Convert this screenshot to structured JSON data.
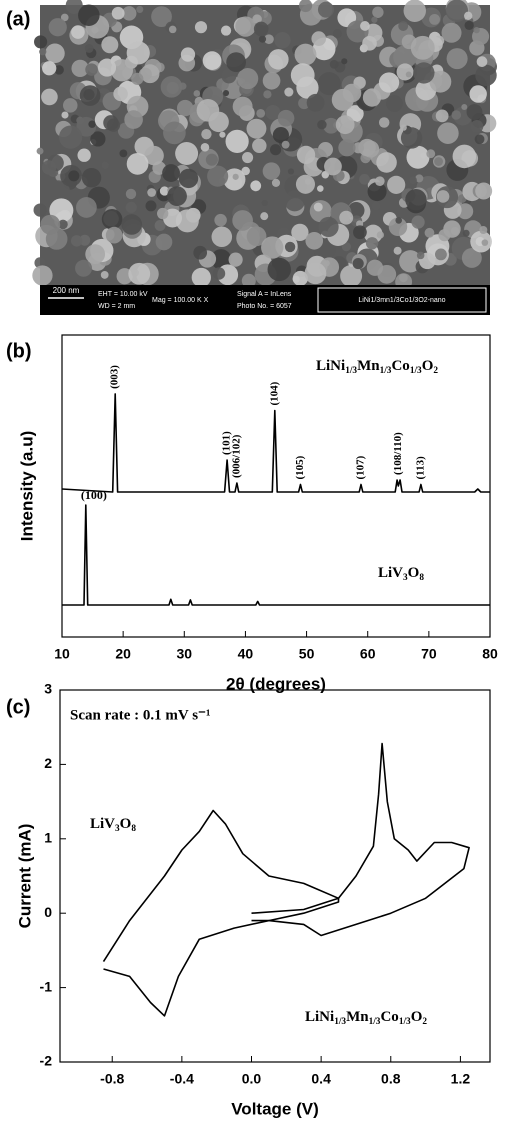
{
  "image": {
    "label": "(a)",
    "scale_bar": "200 nm",
    "info": [
      "EHT = 10.00 kV",
      "WD =   2 mm",
      "Mag = 100.00 K X",
      "Signal A = InLens",
      "Photo No. = 6057"
    ],
    "sample": "LiNi1/3mn1/3Co1/3O2-nano"
  },
  "chart_data": [
    {
      "type": "line",
      "panel_label": "(b)",
      "x_label": "2θ (degrees)",
      "y_label": "Intensity (a.u)",
      "xlim": [
        10,
        80
      ],
      "xticks": [
        10,
        20,
        30,
        40,
        50,
        60,
        70,
        80
      ],
      "ylim": [
        0,
        100
      ],
      "series": [
        {
          "name": "LiNi1/3Mn1/3Co1/3O2",
          "color": "#000000",
          "x": [
            10,
            18.3,
            18.7,
            19.1,
            36.6,
            37.0,
            37.4,
            38.3,
            38.6,
            38.9,
            44.4,
            44.8,
            45.2,
            48.7,
            49.0,
            49.3,
            58.6,
            58.9,
            59.2,
            64.5,
            64.8,
            65.0,
            65.3,
            65.6,
            68.4,
            68.7,
            69.0,
            77.5,
            78,
            78.5,
            80
          ],
          "values": [
            49,
            48,
            80.5,
            48,
            48,
            58.6,
            48,
            48,
            51,
            48,
            48,
            75,
            48,
            48,
            50.5,
            48,
            48,
            50.5,
            48,
            48,
            52,
            50,
            52,
            48,
            48,
            50.5,
            48,
            48,
            49,
            48,
            48
          ],
          "peak_labels": [
            {
              "text": "(003)",
              "x": 18.7
            },
            {
              "text": "(101)",
              "x": 37.0
            },
            {
              "text": "(006/102)",
              "x": 38.6
            },
            {
              "text": "(104)",
              "x": 44.8
            },
            {
              "text": "(105)",
              "x": 49.0
            },
            {
              "text": "(107)",
              "x": 58.9
            },
            {
              "text": "(108/110)",
              "x": 65.0
            },
            {
              "text": "(113)",
              "x": 68.7
            }
          ]
        },
        {
          "name": "LiV3O8",
          "color": "#000000",
          "x": [
            10,
            13.6,
            13.9,
            14.2,
            27.5,
            27.8,
            28.1,
            30.7,
            31.0,
            31.3,
            41.7,
            42.0,
            42.3,
            80
          ],
          "values": [
            10.6,
            10.6,
            43.7,
            10.6,
            10.6,
            12.5,
            10.6,
            10.6,
            12.3,
            10.6,
            10.6,
            11.8,
            10.6,
            10.6
          ],
          "peak_labels": [
            {
              "text": "(100)",
              "x": 13.9
            }
          ]
        }
      ]
    },
    {
      "type": "line",
      "panel_label": "(c)",
      "x_label": "Voltage (V)",
      "y_label": "Current (mA)",
      "annotation": "Scan rate : 0.1 mV s⁻¹",
      "xlim": [
        -1.1,
        1.37
      ],
      "xticks": [
        -0.8,
        -0.4,
        {
          "value": 0,
          "label": "0.0"
        },
        0.4,
        0.8,
        1.2
      ],
      "ylim": [
        -2,
        3
      ],
      "yticks": [
        -2,
        -1,
        0,
        1,
        2,
        3
      ],
      "series": [
        {
          "name": "LiV3O8",
          "color": "#000000",
          "x": [
            -0.85,
            -0.7,
            -0.5,
            -0.4,
            -0.3,
            -0.22,
            -0.15,
            -0.05,
            0.1,
            0.3,
            0.5,
            0.5,
            0.3,
            0.1,
            -0.1,
            -0.3,
            -0.42,
            -0.5,
            -0.58,
            -0.7,
            -0.85
          ],
          "values": [
            -0.65,
            -0.1,
            0.5,
            0.85,
            1.1,
            1.38,
            1.2,
            0.8,
            0.5,
            0.4,
            0.2,
            0.15,
            0.0,
            -0.1,
            -0.2,
            -0.35,
            -0.85,
            -1.38,
            -1.2,
            -0.85,
            -0.75
          ]
        },
        {
          "name": "LiNi1/3Mn1/3Co1/3O2",
          "color": "#000000",
          "x": [
            0.0,
            0.3,
            0.5,
            0.6,
            0.7,
            0.73,
            0.75,
            0.78,
            0.82,
            0.9,
            0.95,
            1.05,
            1.15,
            1.25,
            1.22,
            1.0,
            0.8,
            0.6,
            0.4,
            0.3,
            0.1,
            0.0
          ],
          "values": [
            0.0,
            0.05,
            0.2,
            0.5,
            0.9,
            1.6,
            2.28,
            1.5,
            1.0,
            0.85,
            0.7,
            0.95,
            0.95,
            0.88,
            0.6,
            0.2,
            0.0,
            -0.15,
            -0.3,
            -0.15,
            -0.1,
            -0.1
          ]
        }
      ]
    }
  ]
}
